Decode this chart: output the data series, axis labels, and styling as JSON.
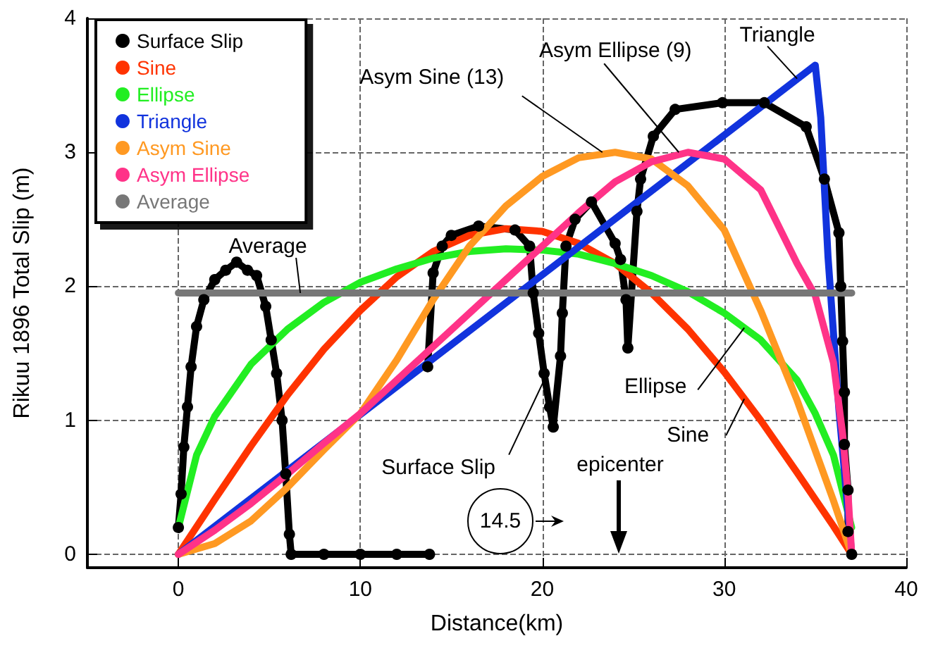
{
  "chart_data": {
    "type": "line",
    "xlabel": "Distance(km)",
    "ylabel": "Rikuu 1896 Total Slip (m)",
    "xlim": [
      -5,
      40
    ],
    "xticks": [
      0,
      10,
      20,
      30,
      40
    ],
    "ylim": [
      -0.1,
      4
    ],
    "yticks": [
      0,
      1,
      2,
      3,
      4
    ],
    "grid": true,
    "legend": "top left",
    "line_style": "solid",
    "series": [
      {
        "name": "Surface Slip",
        "color": "#000000",
        "marker": "circle",
        "x": [
          0,
          0.15,
          0.3,
          0.5,
          0.7,
          1.0,
          1.4,
          2.0,
          2.6,
          3.2,
          3.8,
          4.3,
          4.8,
          5.1,
          5.4,
          5.7,
          5.9,
          6.1,
          6.2,
          8,
          10,
          12,
          13.8
        ],
        "values": [
          0.2,
          0.45,
          0.8,
          1.1,
          1.4,
          1.7,
          1.9,
          2.05,
          2.12,
          2.18,
          2.12,
          2.08,
          1.85,
          1.6,
          1.35,
          1.0,
          0.6,
          0.15,
          0,
          0,
          0,
          0,
          0
        ]
      },
      {
        "color": "#000000",
        "marker": "circle",
        "x": [
          13.7,
          14.0,
          14.5,
          15.0,
          16.5,
          18.5,
          19.3,
          19.5,
          19.8,
          20.1,
          20.4,
          20.6,
          21.0,
          21.1,
          21.3,
          21.8,
          22.7,
          24.0,
          24.3,
          24.6,
          24.7,
          25.2,
          25.4,
          26.1,
          27.3,
          29.9,
          32.2,
          34.5,
          35.5,
          36.3,
          36.4,
          36.5,
          36.6,
          36.6,
          36.8,
          36.8,
          37
        ],
        "values": [
          1.4,
          2.1,
          2.3,
          2.38,
          2.45,
          2.42,
          2.3,
          1.95,
          1.65,
          1.35,
          1.1,
          0.95,
          1.48,
          1.8,
          2.3,
          2.5,
          2.63,
          2.32,
          2.2,
          1.9,
          1.54,
          2.56,
          2.8,
          3.12,
          3.32,
          3.37,
          3.37,
          3.19,
          2.8,
          2.4,
          2.0,
          1.59,
          1.21,
          0.82,
          0.48,
          0.17,
          0
        ]
      },
      {
        "name": "Sine",
        "color": "#ff3300",
        "x": [
          0,
          2,
          4,
          6,
          8,
          10,
          12,
          14,
          16,
          18,
          20,
          22,
          24,
          26,
          28,
          30,
          32,
          34,
          36,
          37
        ],
        "values": [
          0,
          0.41,
          0.81,
          1.19,
          1.53,
          1.82,
          2.07,
          2.26,
          2.38,
          2.43,
          2.41,
          2.32,
          2.17,
          1.95,
          1.68,
          1.36,
          1.0,
          0.61,
          0.21,
          0
        ]
      },
      {
        "name": "Ellipse",
        "color": "#22ee22",
        "x": [
          0,
          1,
          2,
          4,
          6,
          8,
          10,
          12,
          14,
          16,
          18,
          20,
          22,
          24,
          26,
          28,
          30,
          32,
          34,
          35,
          36,
          37
        ],
        "values": [
          0.2,
          0.74,
          1.03,
          1.42,
          1.68,
          1.88,
          2.03,
          2.13,
          2.21,
          2.26,
          2.28,
          2.27,
          2.24,
          2.17,
          2.08,
          1.96,
          1.8,
          1.6,
          1.3,
          1.05,
          0.74,
          0.2
        ]
      },
      {
        "name": "Triangle",
        "color": "#1133dd",
        "x": [
          0,
          35,
          35.3,
          35.7,
          36.3,
          37
        ],
        "values": [
          0,
          3.65,
          3.26,
          2.22,
          1.08,
          0
        ]
      },
      {
        "name": "Asym Sine",
        "color": "#ff9922",
        "x": [
          0,
          2,
          4,
          6,
          8,
          10,
          12,
          14,
          16,
          18,
          20,
          22,
          24,
          26,
          28,
          30,
          32,
          34,
          36,
          37
        ],
        "values": [
          0,
          0.08,
          0.25,
          0.5,
          0.78,
          1.05,
          1.45,
          1.9,
          2.3,
          2.6,
          2.82,
          2.96,
          3.0,
          2.95,
          2.75,
          2.42,
          1.82,
          1.15,
          0.4,
          0
        ]
      },
      {
        "name": "Asym Ellipse",
        "color": "#ff3388",
        "x": [
          0,
          2,
          4,
          6,
          8,
          10,
          12,
          14,
          16,
          18,
          20,
          22,
          24,
          26,
          28,
          30,
          32,
          34,
          35,
          36,
          36.5,
          36.8,
          37
        ],
        "values": [
          0,
          0.18,
          0.38,
          0.6,
          0.83,
          1.05,
          1.3,
          1.55,
          1.8,
          2.05,
          2.3,
          2.55,
          2.78,
          2.93,
          3.0,
          2.95,
          2.72,
          2.17,
          1.93,
          1.43,
          0.9,
          0.45,
          0
        ]
      },
      {
        "name": "Average",
        "color": "#777777",
        "x": [
          0,
          37
        ],
        "values": [
          1.95,
          1.95
        ]
      }
    ],
    "annotations": [
      {
        "text": "Average",
        "x": 6.7,
        "y": 1.95
      },
      {
        "text": "Asym Sine (13)",
        "x": 23.3,
        "y": 3.0
      },
      {
        "text": "Asym Ellipse (9)",
        "x": 27.5,
        "y": 3.0
      },
      {
        "text": "Triangle",
        "x": 34,
        "y": 3.55
      },
      {
        "text": "Ellipse",
        "x": 31.1,
        "y": 1.69
      },
      {
        "text": "Sine",
        "x": 31.1,
        "y": 1.16
      },
      {
        "text": "Surface Slip",
        "x": 20.1,
        "y": 1.3
      },
      "14.5",
      "epicenter"
    ]
  }
}
